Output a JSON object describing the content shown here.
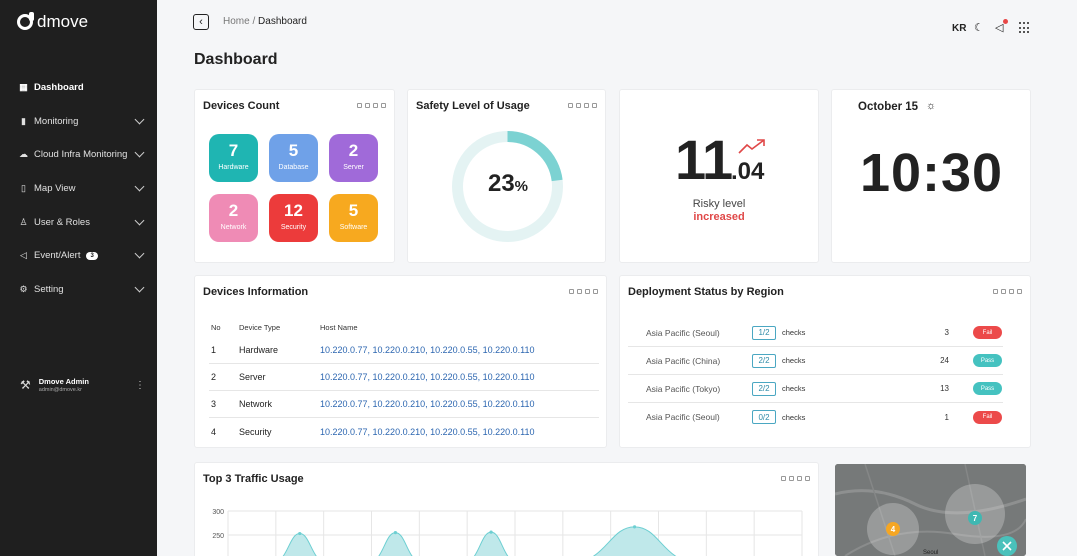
{
  "sidebar": {
    "logo_text": "dmove",
    "items": [
      {
        "label": "Dashboard",
        "icon": "grid-icon",
        "glyph": "▦"
      },
      {
        "label": "Monitoring",
        "icon": "bar-chart-icon",
        "glyph": "▮"
      },
      {
        "label": "Cloud Infra Monitoring",
        "icon": "cloud-icon",
        "glyph": "☁"
      },
      {
        "label": "Map View",
        "icon": "map-icon",
        "glyph": "▯"
      },
      {
        "label": "User & Roles",
        "icon": "user-icon",
        "glyph": "♙"
      },
      {
        "label": "Event/Alert",
        "icon": "megaphone-icon",
        "glyph": "◁",
        "badge": "3"
      },
      {
        "label": "Setting",
        "icon": "gear-icon",
        "glyph": "⚙"
      }
    ],
    "user": {
      "name": "Dmove Admin",
      "email": "admin@dmove.kr"
    }
  },
  "header": {
    "breadcrumb_home": "Home",
    "breadcrumb_sep": " / ",
    "breadcrumb_current": "Dashboard",
    "lang": "KR",
    "page_title": "Dashboard"
  },
  "devices_count": {
    "title": "Devices Count",
    "tiles": [
      {
        "value": "7",
        "label": "Hardware",
        "color": "#1fb5b2"
      },
      {
        "value": "5",
        "label": "Database",
        "color": "#6fa1e8"
      },
      {
        "value": "2",
        "label": "Server",
        "color": "#a06ad9"
      },
      {
        "value": "2",
        "label": "Network",
        "color": "#ef8bb5"
      },
      {
        "value": "12",
        "label": "Security",
        "color": "#ec3b3b"
      },
      {
        "value": "5",
        "label": "Software",
        "color": "#f7a91f"
      }
    ]
  },
  "safety": {
    "title": "Safety Level of Usage",
    "value": "23",
    "unit": "%",
    "fraction": 0.23,
    "track_color": "#e4f3f3",
    "fill_color": "#7cd2d2"
  },
  "risky": {
    "whole": "11",
    "decimal": ".04",
    "label": "Risky level",
    "status": "increased",
    "accent": "#e04848"
  },
  "clock": {
    "date": "October 15",
    "time": "10:30"
  },
  "devices_info": {
    "title": "Devices Information",
    "columns": [
      "No",
      "Device Type",
      "Host Name"
    ],
    "rows": [
      {
        "no": "1",
        "type": "Hardware",
        "host": "10.220.0.77, 10.220.0.210, 10.220.0.55, 10.220.0.110"
      },
      {
        "no": "2",
        "type": "Server",
        "host": "10.220.0.77, 10.220.0.210, 10.220.0.55, 10.220.0.110"
      },
      {
        "no": "3",
        "type": "Network",
        "host": "10.220.0.77, 10.220.0.210, 10.220.0.55, 10.220.0.110"
      },
      {
        "no": "4",
        "type": "Security",
        "host": "10.220.0.77, 10.220.0.210, 10.220.0.55, 10.220.0.110"
      }
    ]
  },
  "deployment": {
    "title": "Deployment Status by Region",
    "rows": [
      {
        "region": "Asia Pacific (Seoul)",
        "fraction": "1/2",
        "checks": "checks",
        "count": "3",
        "status": "Fail",
        "color": "#ec4a4a"
      },
      {
        "region": "Asia Pacific (China)",
        "fraction": "2/2",
        "checks": "checks",
        "count": "24",
        "status": "Pass",
        "color": "#45c2c0"
      },
      {
        "region": "Asia Pacific (Tokyo)",
        "fraction": "2/2",
        "checks": "checks",
        "count": "13",
        "status": "Pass",
        "color": "#45c2c0"
      },
      {
        "region": "Asia Pacific (Seoul)",
        "fraction": "0/2",
        "checks": "checks",
        "count": "1",
        "status": "Fail",
        "color": "#ec4a4a"
      }
    ]
  },
  "traffic": {
    "title": "Top 3 Traffic Usage",
    "chart_data": {
      "type": "area",
      "title": "Top 3 Traffic Usage",
      "y_ticks": [
        "300",
        "250"
      ],
      "ylim": [
        200,
        300
      ],
      "peaks": [
        {
          "center": 1.5,
          "value": 253
        },
        {
          "center": 3.5,
          "value": 255
        },
        {
          "center": 5.5,
          "value": 256
        },
        {
          "center": 8.5,
          "value": 267
        }
      ],
      "x_divisions": 12,
      "grid": true,
      "fill_color": "#bfe8ea",
      "line_color": "#6dcfd2"
    }
  },
  "map": {
    "clusters": [
      {
        "label": "4",
        "color": "#f5a623"
      },
      {
        "label": "7",
        "color": "#3fb8b2"
      }
    ],
    "city_label": "Seoul"
  }
}
